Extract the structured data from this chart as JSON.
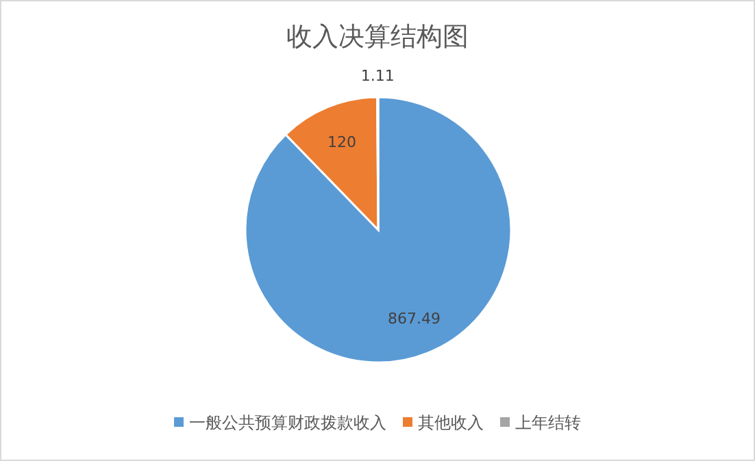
{
  "chart_data": {
    "type": "pie",
    "title": "收入决算结构图",
    "categories": [
      "一般公共预算财政拨款收入",
      "其他收入",
      "上年结转"
    ],
    "values": [
      867.49,
      120,
      1.11
    ],
    "colors": [
      "#5b9bd5",
      "#ed7d31",
      "#a5a5a5"
    ],
    "data_labels": true,
    "legend": "bottom"
  }
}
